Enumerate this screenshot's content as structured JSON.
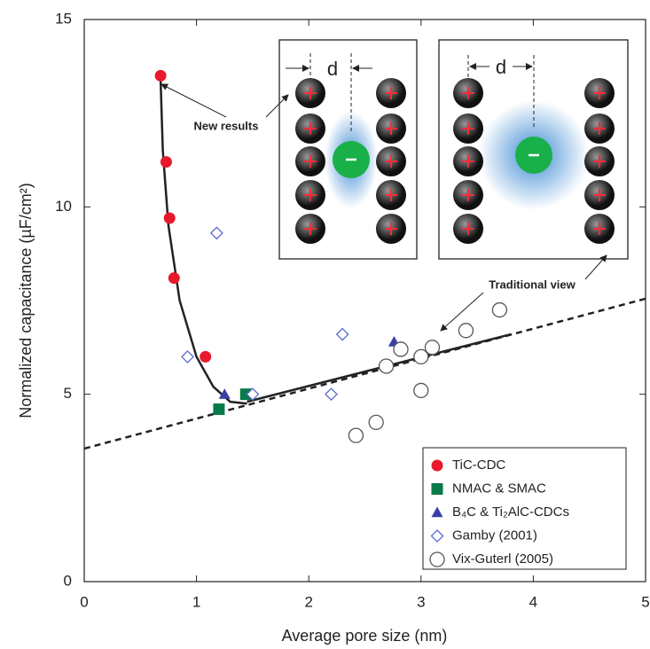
{
  "chart_data": {
    "type": "scatter",
    "x_label": "Average pore size (nm)",
    "y_label": "Normalized capacitance (µF/cm²)",
    "xlim": [
      0,
      5
    ],
    "ylim": [
      0,
      15
    ],
    "xticks": [
      0,
      1,
      2,
      3,
      4,
      5
    ],
    "yticks": [
      0,
      5,
      10,
      15
    ],
    "series": [
      {
        "name": "TiC-CDC",
        "color": "#e8192c",
        "marker": "circle",
        "filled": true,
        "x": [
          0.68,
          0.73,
          0.76,
          0.8,
          1.08
        ],
        "values": [
          13.5,
          11.2,
          9.7,
          8.1,
          6.0
        ]
      },
      {
        "name": "NMAC  & SMAC",
        "color": "#0a7a4a",
        "marker": "square",
        "filled": true,
        "x": [
          1.2,
          1.44
        ],
        "values": [
          4.6,
          5.0
        ]
      },
      {
        "name": "B₄C & Ti₂AlC-CDCs",
        "color": "#3a3fa8",
        "marker": "triangle",
        "filled": true,
        "x": [
          1.25,
          2.76
        ],
        "values": [
          5.0,
          6.4
        ]
      },
      {
        "name": "Gamby (2001)",
        "color": "#5a6ad0",
        "marker": "diamond",
        "filled": false,
        "x": [
          1.18,
          0.92,
          1.5,
          2.2,
          2.3
        ],
        "values": [
          9.3,
          6.0,
          5.0,
          5.0,
          6.6
        ]
      },
      {
        "name": "Vix-Guterl (2005)",
        "color": "#555555",
        "marker": "circle",
        "filled": false,
        "x": [
          2.42,
          2.6,
          2.69,
          2.82,
          3.0,
          3.0,
          3.1,
          3.4,
          3.7
        ],
        "values": [
          3.9,
          4.25,
          5.75,
          6.2,
          6.0,
          5.1,
          6.25,
          6.7,
          7.25
        ]
      }
    ],
    "fits": [
      {
        "style": "solid",
        "x": [
          0.68,
          0.7,
          0.75,
          0.85,
          1.0,
          1.15,
          1.3,
          1.45
        ],
        "values": [
          13.4,
          11.5,
          9.5,
          7.5,
          6.0,
          5.2,
          4.8,
          4.75
        ]
      },
      {
        "style": "solid",
        "x": [
          1.45,
          3.8
        ],
        "values": [
          4.8,
          6.6
        ]
      },
      {
        "style": "dashed",
        "x": [
          0,
          5
        ],
        "values": [
          3.55,
          7.55
        ]
      }
    ],
    "annotations": [
      "New results",
      "Traditional view",
      "d",
      "d"
    ]
  }
}
